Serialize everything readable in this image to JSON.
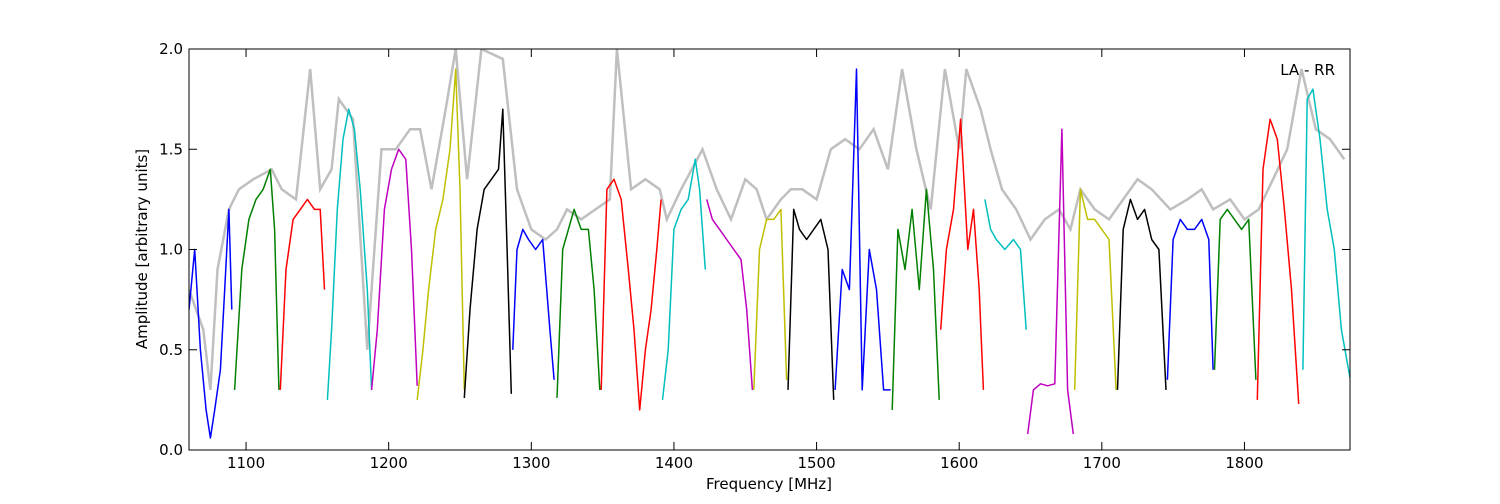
{
  "chart_data": {
    "type": "line",
    "annotation": "LA - RR",
    "xlabel": "Frequency [MHz]",
    "ylabel": "Amplitude [arbitrary units]",
    "xlim": [
      1060,
      1874
    ],
    "ylim": [
      0.0,
      2.0
    ],
    "xticks": [
      1100,
      1200,
      1300,
      1400,
      1500,
      1600,
      1700,
      1800
    ],
    "xtick_labels": [
      "1100",
      "1200",
      "1300",
      "1400",
      "1500",
      "1600",
      "1700",
      "1800"
    ],
    "yticks": [
      0.0,
      0.5,
      1.0,
      1.5,
      2.0
    ],
    "ytick_labels": [
      "0.0",
      "0.5",
      "1.0",
      "1.5",
      "2.0"
    ],
    "grid": false,
    "background_series": {
      "name": "",
      "color": "#bfbfbf",
      "x": [
        1060,
        1070,
        1075,
        1080,
        1088,
        1095,
        1105,
        1118,
        1125,
        1135,
        1145,
        1152,
        1160,
        1165,
        1175,
        1185,
        1195,
        1205,
        1215,
        1222,
        1230,
        1240,
        1247,
        1255,
        1265,
        1280,
        1290,
        1300,
        1310,
        1318,
        1325,
        1335,
        1345,
        1355,
        1360,
        1370,
        1380,
        1390,
        1395,
        1405,
        1420,
        1430,
        1440,
        1450,
        1458,
        1465,
        1475,
        1482,
        1490,
        1500,
        1510,
        1520,
        1530,
        1540,
        1550,
        1560,
        1570,
        1580,
        1590,
        1600,
        1605,
        1615,
        1622,
        1630,
        1640,
        1650,
        1660,
        1670,
        1678,
        1685,
        1695,
        1705,
        1715,
        1725,
        1735,
        1748,
        1760,
        1770,
        1778,
        1790,
        1800,
        1810,
        1820,
        1830,
        1840,
        1850,
        1860,
        1870
      ],
      "y": [
        0.8,
        0.6,
        0.3,
        0.9,
        1.2,
        1.3,
        1.35,
        1.4,
        1.3,
        1.25,
        1.9,
        1.3,
        1.4,
        1.75,
        1.65,
        0.5,
        1.5,
        1.5,
        1.6,
        1.6,
        1.3,
        1.7,
        2.0,
        1.35,
        2.0,
        1.95,
        1.3,
        1.1,
        1.05,
        1.1,
        1.2,
        1.15,
        1.2,
        1.25,
        2.0,
        1.3,
        1.35,
        1.3,
        1.15,
        1.3,
        1.5,
        1.3,
        1.15,
        1.35,
        1.3,
        1.15,
        1.25,
        1.3,
        1.3,
        1.25,
        1.5,
        1.55,
        1.5,
        1.6,
        1.4,
        1.9,
        1.5,
        1.2,
        1.9,
        1.5,
        1.9,
        1.7,
        1.5,
        1.3,
        1.2,
        1.05,
        1.15,
        1.2,
        1.1,
        1.3,
        1.2,
        1.15,
        1.25,
        1.35,
        1.3,
        1.2,
        1.25,
        1.3,
        1.2,
        1.25,
        1.15,
        1.2,
        1.35,
        1.5,
        1.9,
        1.6,
        1.55,
        1.45
      ]
    },
    "series": [
      {
        "color": "#0000ff",
        "x": [
          1060,
          1064,
          1068,
          1072,
          1075,
          1078,
          1082,
          1085,
          1088,
          1090
        ],
        "y": [
          0.7,
          1.0,
          0.5,
          0.2,
          0.06,
          0.2,
          0.4,
          0.8,
          1.2,
          0.7
        ]
      },
      {
        "color": "#008000",
        "x": [
          1092,
          1097,
          1102,
          1107,
          1112,
          1117,
          1120,
          1123
        ],
        "y": [
          0.3,
          0.9,
          1.15,
          1.25,
          1.3,
          1.4,
          1.1,
          0.3
        ]
      },
      {
        "color": "#ff0000",
        "x": [
          1124,
          1128,
          1133,
          1138,
          1143,
          1148,
          1152,
          1155
        ],
        "y": [
          0.3,
          0.9,
          1.15,
          1.2,
          1.25,
          1.2,
          1.2,
          0.8
        ]
      },
      {
        "color": "#00bfbf",
        "x": [
          1157,
          1160,
          1164,
          1168,
          1172,
          1176,
          1180,
          1185,
          1188
        ],
        "y": [
          0.25,
          0.6,
          1.2,
          1.55,
          1.7,
          1.6,
          1.3,
          0.8,
          0.3
        ]
      },
      {
        "color": "#bf00bf",
        "x": [
          1188,
          1192,
          1197,
          1202,
          1207,
          1212,
          1216,
          1220
        ],
        "y": [
          0.3,
          0.6,
          1.2,
          1.4,
          1.5,
          1.45,
          1.0,
          0.32
        ]
      },
      {
        "color": "#bfbf00",
        "x": [
          1220,
          1224,
          1228,
          1233,
          1238,
          1243,
          1247,
          1250,
          1253
        ],
        "y": [
          0.25,
          0.5,
          0.8,
          1.1,
          1.25,
          1.5,
          1.9,
          1.3,
          0.3
        ]
      },
      {
        "color": "#000000",
        "x": [
          1253,
          1257,
          1262,
          1267,
          1272,
          1277,
          1280,
          1283,
          1286
        ],
        "y": [
          0.26,
          0.7,
          1.1,
          1.3,
          1.35,
          1.4,
          1.7,
          1.0,
          0.28
        ]
      },
      {
        "color": "#0000ff",
        "x": [
          1287,
          1290,
          1294,
          1298,
          1303,
          1308,
          1313,
          1316
        ],
        "y": [
          0.5,
          1.0,
          1.1,
          1.05,
          1.0,
          1.05,
          0.6,
          0.35
        ]
      },
      {
        "color": "#008000",
        "x": [
          1318,
          1322,
          1326,
          1330,
          1335,
          1340,
          1344,
          1348
        ],
        "y": [
          0.26,
          1.0,
          1.1,
          1.2,
          1.1,
          1.1,
          0.8,
          0.3
        ]
      },
      {
        "color": "#ff0000",
        "x": [
          1349,
          1353,
          1358,
          1363,
          1368,
          1372,
          1376,
          1380,
          1384,
          1388,
          1391
        ],
        "y": [
          0.3,
          1.3,
          1.35,
          1.25,
          0.9,
          0.6,
          0.2,
          0.5,
          0.7,
          1.0,
          1.25
        ]
      },
      {
        "color": "#00bfbf",
        "x": [
          1392,
          1396,
          1400,
          1405,
          1410,
          1415,
          1418,
          1422
        ],
        "y": [
          0.25,
          0.5,
          1.1,
          1.2,
          1.25,
          1.45,
          1.3,
          0.9
        ]
      },
      {
        "color": "#bf00bf",
        "x": [
          1423,
          1427,
          1432,
          1437,
          1442,
          1447,
          1451,
          1455
        ],
        "y": [
          1.25,
          1.15,
          1.1,
          1.05,
          1.0,
          0.95,
          0.7,
          0.3
        ]
      },
      {
        "color": "#bfbf00",
        "x": [
          1456,
          1460,
          1465,
          1470,
          1475,
          1479
        ],
        "y": [
          0.3,
          1.0,
          1.15,
          1.15,
          1.2,
          0.35
        ]
      },
      {
        "color": "#000000",
        "x": [
          1480,
          1484,
          1488,
          1493,
          1498,
          1503,
          1508,
          1512
        ],
        "y": [
          0.3,
          1.2,
          1.1,
          1.05,
          1.1,
          1.15,
          1.0,
          0.25
        ]
      },
      {
        "color": "#0000ff",
        "x": [
          1513,
          1518,
          1523,
          1528,
          1532,
          1537,
          1542,
          1547,
          1552
        ],
        "y": [
          0.3,
          0.9,
          0.8,
          1.9,
          0.3,
          1.0,
          0.8,
          0.3,
          0.3
        ]
      },
      {
        "color": "#008000",
        "x": [
          1553,
          1557,
          1562,
          1567,
          1572,
          1577,
          1582,
          1586
        ],
        "y": [
          0.2,
          1.1,
          0.9,
          1.2,
          0.8,
          1.3,
          0.9,
          0.25
        ]
      },
      {
        "color": "#ff0000",
        "x": [
          1587,
          1591,
          1596,
          1601,
          1606,
          1610,
          1614,
          1617
        ],
        "y": [
          0.6,
          1.0,
          1.2,
          1.65,
          1.0,
          1.2,
          0.8,
          0.3
        ]
      },
      {
        "color": "#00bfbf",
        "x": [
          1618,
          1622,
          1626,
          1632,
          1638,
          1643,
          1647
        ],
        "y": [
          1.25,
          1.1,
          1.05,
          1.0,
          1.05,
          1.0,
          0.6
        ]
      },
      {
        "color": "#bf00bf",
        "x": [
          1648,
          1652,
          1657,
          1662,
          1667,
          1672,
          1676,
          1680
        ],
        "y": [
          0.08,
          0.3,
          0.33,
          0.32,
          0.33,
          1.6,
          0.3,
          0.08
        ]
      },
      {
        "color": "#bfbf00",
        "x": [
          1681,
          1685,
          1690,
          1695,
          1700,
          1705,
          1710
        ],
        "y": [
          0.3,
          1.3,
          1.15,
          1.15,
          1.1,
          1.05,
          0.3
        ]
      },
      {
        "color": "#000000",
        "x": [
          1711,
          1715,
          1720,
          1725,
          1730,
          1735,
          1740,
          1745
        ],
        "y": [
          0.3,
          1.1,
          1.25,
          1.15,
          1.2,
          1.05,
          1.0,
          0.3
        ]
      },
      {
        "color": "#0000ff",
        "x": [
          1746,
          1750,
          1755,
          1760,
          1765,
          1770,
          1775,
          1778
        ],
        "y": [
          0.35,
          1.05,
          1.15,
          1.1,
          1.1,
          1.15,
          1.05,
          0.4
        ]
      },
      {
        "color": "#008000",
        "x": [
          1779,
          1783,
          1788,
          1793,
          1798,
          1803,
          1808
        ],
        "y": [
          0.4,
          1.15,
          1.2,
          1.15,
          1.1,
          1.15,
          0.35
        ]
      },
      {
        "color": "#ff0000",
        "x": [
          1809,
          1813,
          1818,
          1823,
          1828,
          1833,
          1838
        ],
        "y": [
          0.25,
          1.4,
          1.65,
          1.55,
          1.2,
          0.8,
          0.23
        ]
      },
      {
        "color": "#00bfbf",
        "x": [
          1841,
          1844,
          1848,
          1853,
          1858,
          1863,
          1868,
          1874
        ],
        "y": [
          0.4,
          1.75,
          1.8,
          1.55,
          1.2,
          1.0,
          0.6,
          0.36
        ]
      }
    ]
  }
}
